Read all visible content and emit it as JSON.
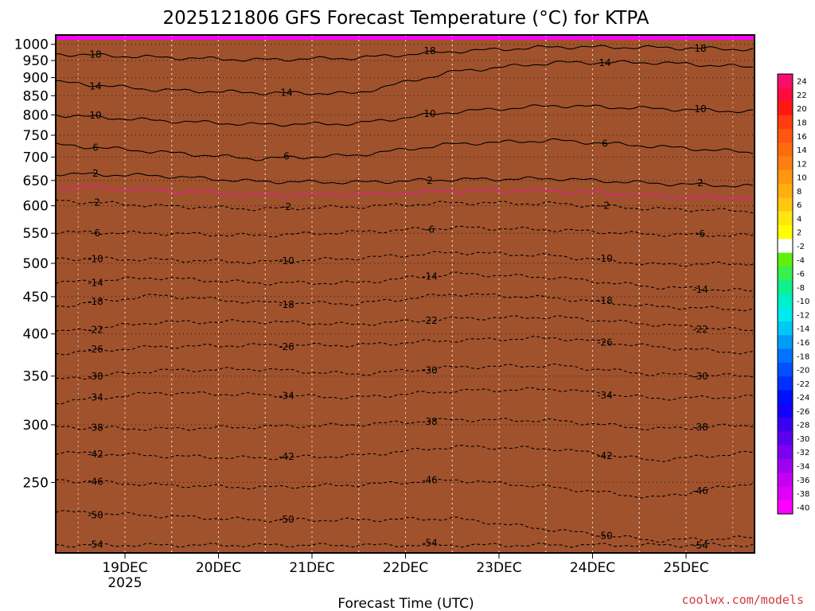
{
  "chart_data": {
    "type": "heatmap",
    "title": "2025121806 GFS Forecast Temperature (°C) for KTPA",
    "xlabel": "Forecast Time (UTC)",
    "ylabel": "",
    "credit": "coolwx.com/models",
    "x_ticks": [
      "19DEC",
      "20DEC",
      "21DEC",
      "22DEC",
      "23DEC",
      "24DEC",
      "25DEC"
    ],
    "x_year_label": "2025",
    "x_range_days": [
      "2025-12-18 06Z",
      "2025-12-25 18Z"
    ],
    "y_axis": {
      "scale": "log",
      "range_hpa": [
        1030,
        200
      ],
      "ticks": [
        250,
        300,
        350,
        400,
        450,
        500,
        550,
        600,
        650,
        700,
        750,
        800,
        850,
        900,
        950,
        1000
      ]
    },
    "grid": true,
    "colorbar": {
      "labels": [
        24,
        22,
        20,
        18,
        16,
        14,
        12,
        10,
        8,
        6,
        4,
        2,
        -2,
        -4,
        -6,
        -8,
        -10,
        -12,
        -14,
        -16,
        -18,
        -20,
        -22,
        -24,
        -26,
        -28,
        -30,
        -32,
        -34,
        -36,
        -38,
        -40
      ],
      "colors": [
        "#f70f6c",
        "#ff0b3c",
        "#ff1a10",
        "#ff3d10",
        "#ff5610",
        "#ff6c10",
        "#ff8010",
        "#ff9810",
        "#ffb010",
        "#ffc810",
        "#ffe610",
        "#ffff00",
        "#ffffff",
        "#5ff00c",
        "#38f04e",
        "#10f090",
        "#00f0c8",
        "#00eaf0",
        "#00c8f4",
        "#009cf8",
        "#0074fc",
        "#0050ff",
        "#0030ff",
        "#0010ff",
        "#1400ff",
        "#3a00f0",
        "#5c00f0",
        "#7e00f0",
        "#a000f0",
        "#c400f4",
        "#e000f6",
        "#ff00ff"
      ]
    },
    "contours": [
      {
        "label": "-54",
        "profile": [
          205,
          205,
          205,
          205,
          205,
          205,
          205,
          205
        ]
      },
      {
        "label": "-50",
        "profile": [
          228,
          225,
          222,
          222,
          223,
          215,
          208,
          210
        ]
      },
      {
        "label": "-46",
        "profile": [
          252,
          248,
          246,
          248,
          252,
          246,
          238,
          250
        ]
      },
      {
        "label": "-42",
        "profile": [
          275,
          272,
          270,
          272,
          280,
          278,
          268,
          275
        ]
      },
      {
        "label": "-38",
        "profile": [
          298,
          296,
          298,
          300,
          305,
          304,
          296,
          300
        ]
      },
      {
        "label": "-34",
        "profile": [
          322,
          332,
          330,
          327,
          334,
          336,
          326,
          328
        ]
      },
      {
        "label": "-30",
        "profile": [
          346,
          356,
          358,
          352,
          360,
          362,
          352,
          350
        ]
      },
      {
        "label": "-26",
        "profile": [
          376,
          384,
          386,
          386,
          392,
          395,
          384,
          376
        ]
      },
      {
        "label": "-22",
        "profile": [
          402,
          415,
          416,
          412,
          420,
          422,
          412,
          404
        ]
      },
      {
        "label": "-18",
        "profile": [
          436,
          452,
          442,
          440,
          454,
          448,
          436,
          432
        ]
      },
      {
        "label": "-14",
        "profile": [
          470,
          478,
          470,
          470,
          484,
          478,
          464,
          458
        ]
      },
      {
        "label": "-10",
        "profile": [
          508,
          506,
          502,
          508,
          518,
          512,
          498,
          500
        ]
      },
      {
        "label": "-6",
        "profile": [
          552,
          550,
          546,
          552,
          560,
          556,
          548,
          546
        ]
      },
      {
        "label": "-2",
        "profile": [
          610,
          600,
          594,
          598,
          606,
          604,
          594,
          590
        ]
      },
      {
        "label": "2",
        "profile": [
          664,
          660,
          648,
          646,
          652,
          654,
          644,
          638
        ]
      },
      {
        "label": "6",
        "profile": [
          728,
          712,
          696,
          704,
          730,
          738,
          724,
          710
        ]
      },
      {
        "label": "10",
        "profile": [
          800,
          786,
          776,
          778,
          808,
          824,
          816,
          808
        ]
      },
      {
        "label": "14",
        "profile": [
          888,
          866,
          858,
          856,
          918,
          944,
          944,
          930
        ]
      },
      {
        "label": "18",
        "profile": [
          970,
          960,
          952,
          958,
          978,
          992,
          990,
          984
        ]
      }
    ]
  }
}
